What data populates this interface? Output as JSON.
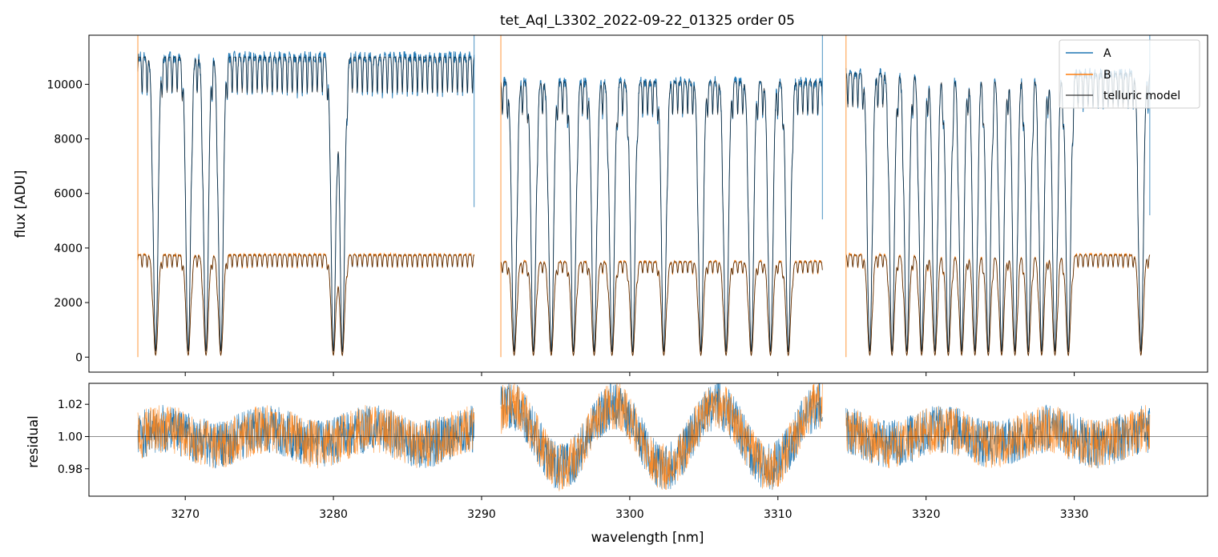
{
  "chart_data": [
    {
      "type": "line",
      "title": "tet_Aql_L3302_2022-09-22_01325  order 05",
      "xlabel": "",
      "ylabel": "flux [ADU]",
      "xlim": [
        3263.5,
        3339.0
      ],
      "ylim": [
        -550,
        11800
      ],
      "yticks": [
        0,
        2000,
        4000,
        6000,
        8000,
        10000
      ],
      "xticks": [
        3270,
        3280,
        3290,
        3300,
        3310,
        3320,
        3330
      ],
      "legend_position": "top-right",
      "series": [
        {
          "name": "A",
          "color": "#1f77b4"
        },
        {
          "name": "B",
          "color": "#ff7f0e"
        },
        {
          "name": "telluric model",
          "color": "#000000"
        }
      ],
      "segments": [
        {
          "x_start": 3266.8,
          "x_end": 3289.5,
          "continuum_A": 11000,
          "continuum_B": 3750
        },
        {
          "x_start": 3291.3,
          "x_end": 3313.0,
          "continuum_A": 10100,
          "continuum_B": 3500
        },
        {
          "x_start": 3314.6,
          "x_end": 3335.1,
          "continuum_A": 10400,
          "continuum_B": 3750
        }
      ],
      "absorption_lines_nm": [
        3268.0,
        3270.2,
        3271.4,
        3272.4,
        3280.0,
        3280.6,
        3292.2,
        3293.5,
        3294.7,
        3296.2,
        3297.6,
        3298.8,
        3300.2,
        3302.3,
        3304.8,
        3306.5,
        3308.2,
        3309.5,
        3310.7,
        3316.2,
        3317.7,
        3318.7,
        3319.7,
        3320.6,
        3321.5,
        3322.4,
        3323.3,
        3324.2,
        3325.1,
        3326.0,
        3326.9,
        3327.8,
        3328.7,
        3329.6,
        3334.5
      ]
    },
    {
      "type": "line",
      "title": "",
      "xlabel": "wavelength [nm]",
      "ylabel": "residual",
      "xlim": [
        3263.5,
        3339.0
      ],
      "ylim": [
        0.963,
        1.033
      ],
      "yticks": [
        0.98,
        1.0,
        1.02
      ],
      "xticks": [
        3270,
        3280,
        3290,
        3300,
        3310,
        3320,
        3330
      ],
      "reference_line": 1.0,
      "series": [
        {
          "name": "A",
          "color": "#1f77b4"
        },
        {
          "name": "B",
          "color": "#ff7f0e"
        }
      ]
    }
  ],
  "tick_labels_x": [
    "3270",
    "3280",
    "3290",
    "3300",
    "3310",
    "3320",
    "3330"
  ],
  "tick_labels_top_y": [
    "0",
    "2000",
    "4000",
    "6000",
    "8000",
    "10000"
  ],
  "tick_labels_bottom_y": [
    "0.98",
    "1.00",
    "1.02"
  ],
  "legend": {
    "a": "A",
    "b": "B",
    "model": "telluric model"
  }
}
